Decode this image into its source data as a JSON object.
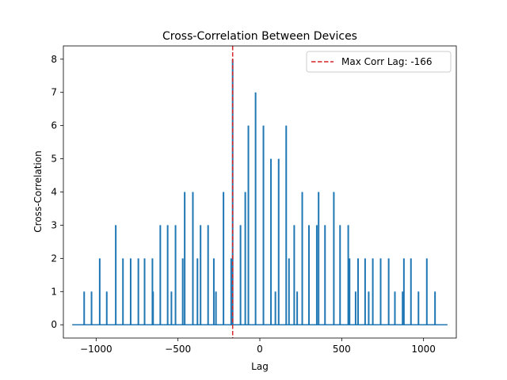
{
  "chart_data": {
    "type": "line",
    "title": "Cross-Correlation Between Devices",
    "xlabel": "Lag",
    "ylabel": "Cross-Correlation",
    "xlim": [
      -1200,
      1200
    ],
    "ylim": [
      -0.4,
      8.4
    ],
    "xticks": [
      -1000,
      -500,
      0,
      500,
      1000
    ],
    "xtick_labels": [
      "−1000",
      "−500",
      "0",
      "500",
      "1000"
    ],
    "yticks": [
      0,
      1,
      2,
      3,
      4,
      5,
      6,
      7,
      8
    ],
    "ytick_labels": [
      "0",
      "1",
      "2",
      "3",
      "4",
      "5",
      "6",
      "7",
      "8"
    ],
    "grid": false,
    "legend_position": "upper right",
    "series": [
      {
        "color": "#1f77b4",
        "x_range": [
          -1146,
          1146
        ],
        "baseline": 0,
        "spikes": [
          {
            "x": -1073,
            "y": 1
          },
          {
            "x": -1028,
            "y": 1
          },
          {
            "x": -978,
            "y": 2
          },
          {
            "x": -935,
            "y": 1
          },
          {
            "x": -880,
            "y": 3
          },
          {
            "x": -836,
            "y": 2
          },
          {
            "x": -789,
            "y": 2
          },
          {
            "x": -742,
            "y": 2
          },
          {
            "x": -704,
            "y": 2
          },
          {
            "x": -656,
            "y": 2
          },
          {
            "x": -652,
            "y": 1
          },
          {
            "x": -608,
            "y": 3
          },
          {
            "x": -563,
            "y": 3
          },
          {
            "x": -540,
            "y": 1
          },
          {
            "x": -515,
            "y": 3
          },
          {
            "x": -471,
            "y": 2
          },
          {
            "x": -459,
            "y": 4
          },
          {
            "x": -409,
            "y": 4
          },
          {
            "x": -381,
            "y": 2
          },
          {
            "x": -362,
            "y": 3
          },
          {
            "x": -316,
            "y": 3
          },
          {
            "x": -281,
            "y": 2
          },
          {
            "x": -268,
            "y": 1
          },
          {
            "x": -222,
            "y": 4
          },
          {
            "x": -175,
            "y": 2
          },
          {
            "x": -166,
            "y": 8
          },
          {
            "x": -118,
            "y": 3
          },
          {
            "x": -89,
            "y": 4
          },
          {
            "x": -70,
            "y": 6
          },
          {
            "x": -26,
            "y": 7
          },
          {
            "x": 22,
            "y": 6
          },
          {
            "x": 68,
            "y": 5
          },
          {
            "x": 95,
            "y": 1
          },
          {
            "x": 115,
            "y": 5
          },
          {
            "x": 161,
            "y": 6
          },
          {
            "x": 178,
            "y": 2
          },
          {
            "x": 210,
            "y": 3
          },
          {
            "x": 228,
            "y": 1
          },
          {
            "x": 259,
            "y": 4
          },
          {
            "x": 300,
            "y": 3
          },
          {
            "x": 348,
            "y": 3
          },
          {
            "x": 359,
            "y": 4
          },
          {
            "x": 398,
            "y": 3
          },
          {
            "x": 452,
            "y": 4
          },
          {
            "x": 490,
            "y": 3
          },
          {
            "x": 540,
            "y": 3
          },
          {
            "x": 548,
            "y": 2
          },
          {
            "x": 585,
            "y": 1
          },
          {
            "x": 600,
            "y": 2
          },
          {
            "x": 643,
            "y": 2
          },
          {
            "x": 665,
            "y": 1
          },
          {
            "x": 690,
            "y": 2
          },
          {
            "x": 738,
            "y": 2
          },
          {
            "x": 787,
            "y": 2
          },
          {
            "x": 825,
            "y": 1
          },
          {
            "x": 872,
            "y": 1
          },
          {
            "x": 880,
            "y": 2
          },
          {
            "x": 923,
            "y": 2
          },
          {
            "x": 969,
            "y": 1
          },
          {
            "x": 1020,
            "y": 2
          },
          {
            "x": 1070,
            "y": 1
          }
        ]
      }
    ],
    "reference_line": {
      "orientation": "vertical",
      "x": -166,
      "color": "#d62728",
      "style": "dashed",
      "label": "Max Corr Lag: -166"
    }
  }
}
